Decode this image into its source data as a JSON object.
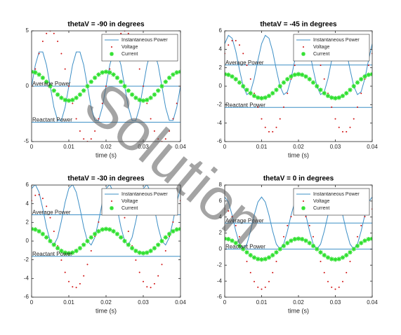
{
  "chart_data": [
    {
      "type": "line",
      "title": "thetaV = -90 in degrees",
      "xlabel": "time (s)",
      "x": [
        0,
        0.001,
        0.002,
        0.003,
        0.004,
        0.005,
        0.006,
        0.007,
        0.008,
        0.009,
        0.01,
        0.011,
        0.012,
        0.013,
        0.014,
        0.015,
        0.016,
        0.017,
        0.018,
        0.019,
        0.02,
        0.021,
        0.022,
        0.023,
        0.024,
        0.025,
        0.026,
        0.027,
        0.028,
        0.029,
        0.03,
        0.031,
        0.032,
        0.033,
        0.034,
        0.035,
        0.036,
        0.037,
        0.038,
        0.039,
        0.04
      ],
      "xlim": [
        0,
        0.04
      ],
      "xticks": [
        0,
        0.01,
        0.02,
        0.03,
        0.04
      ],
      "ylim": [
        -5,
        5
      ],
      "yticks": [
        -5,
        0,
        5
      ],
      "legend": "top-right",
      "series": [
        {
          "name": "Instantaneous Power",
          "color": "#3d8fc6",
          "style": "line",
          "values": [
            0,
            1.91,
            3.09,
            3.09,
            1.91,
            0,
            -1.91,
            -3.09,
            -3.09,
            -1.91,
            0,
            1.91,
            3.09,
            3.09,
            1.91,
            0,
            -1.91,
            -3.09,
            -3.09,
            -1.91,
            0,
            1.91,
            3.09,
            3.09,
            1.91,
            0,
            -1.91,
            -3.09,
            -3.09,
            -1.91,
            0,
            1.91,
            3.09,
            3.09,
            1.91,
            0,
            -1.91,
            -3.09,
            -3.09,
            -1.91,
            0
          ]
        },
        {
          "name": "Voltage",
          "color": "#d01010",
          "style": "dots",
          "values": [
            0,
            1.55,
            2.94,
            4.05,
            4.76,
            5,
            4.76,
            4.05,
            2.94,
            1.55,
            0,
            -1.55,
            -2.94,
            -4.05,
            -4.76,
            -5,
            -4.76,
            -4.05,
            -2.94,
            -1.55,
            0,
            1.55,
            2.94,
            4.05,
            4.76,
            5,
            4.76,
            4.05,
            2.94,
            1.55,
            0,
            -1.55,
            -2.94,
            -4.05,
            -4.76,
            -5,
            -4.76,
            -4.05,
            -2.94,
            -1.55,
            0
          ]
        },
        {
          "name": "Current",
          "color": "#2ee02e",
          "style": "stars",
          "values": [
            1.3,
            1.24,
            1.05,
            0.76,
            0.4,
            0,
            -0.4,
            -0.76,
            -1.05,
            -1.24,
            -1.3,
            -1.24,
            -1.05,
            -0.76,
            -0.4,
            0,
            0.4,
            0.76,
            1.05,
            1.24,
            1.3,
            1.24,
            1.05,
            0.76,
            0.4,
            0,
            -0.4,
            -0.76,
            -1.05,
            -1.24,
            -1.3,
            -1.24,
            -1.05,
            -0.76,
            -0.4,
            0,
            0.4,
            0.76,
            1.05,
            1.24,
            1.3
          ]
        }
      ],
      "hlines": [
        {
          "label": "Average Power",
          "value": 0,
          "color": "#3d8fc6"
        },
        {
          "label": "Reactant Power",
          "value": -3.25,
          "color": "#3d8fc6"
        }
      ]
    },
    {
      "type": "line",
      "title": "thetaV = -45 in degrees",
      "xlabel": "time (s)",
      "x": [
        0,
        0.001,
        0.002,
        0.003,
        0.004,
        0.005,
        0.006,
        0.007,
        0.008,
        0.009,
        0.01,
        0.011,
        0.012,
        0.013,
        0.014,
        0.015,
        0.016,
        0.017,
        0.018,
        0.019,
        0.02,
        0.021,
        0.022,
        0.023,
        0.024,
        0.025,
        0.026,
        0.027,
        0.028,
        0.029,
        0.03,
        0.031,
        0.032,
        0.033,
        0.034,
        0.035,
        0.036,
        0.037,
        0.038,
        0.039,
        0.04
      ],
      "xlim": [
        0,
        0.04
      ],
      "xticks": [
        0,
        0.01,
        0.02,
        0.03,
        0.04
      ],
      "ylim": [
        -6,
        6
      ],
      "yticks": [
        -6,
        -4,
        -2,
        0,
        2,
        4,
        6
      ],
      "legend": "top-right",
      "series": [
        {
          "name": "Instantaneous Power",
          "color": "#3d8fc6",
          "style": "line",
          "values": [
            4.6,
            5.51,
            5.2,
            3.78,
            1.79,
            0,
            -0.91,
            -0.6,
            0.82,
            2.81,
            4.6,
            5.51,
            5.2,
            3.78,
            1.79,
            0,
            -0.91,
            -0.6,
            0.82,
            2.81,
            4.6,
            5.51,
            5.2,
            3.78,
            1.79,
            0,
            -0.91,
            -0.6,
            0.82,
            2.81,
            4.6,
            5.51,
            5.2,
            3.78,
            1.79,
            0,
            -0.91,
            -0.6,
            0.82,
            2.81,
            4.6
          ]
        },
        {
          "name": "Voltage",
          "color": "#d01010",
          "style": "dots",
          "values": [
            3.54,
            4.46,
            4.94,
            4.94,
            4.46,
            3.54,
            2.27,
            0.78,
            -0.78,
            -2.27,
            -3.54,
            -4.46,
            -4.94,
            -4.94,
            -4.46,
            -3.54,
            -2.27,
            -0.78,
            0.78,
            2.27,
            3.54,
            4.46,
            4.94,
            4.94,
            4.46,
            3.54,
            2.27,
            0.78,
            -0.78,
            -2.27,
            -3.54,
            -4.46,
            -4.94,
            -4.94,
            -4.46,
            -3.54,
            -2.27,
            -0.78,
            0.78,
            2.27,
            3.54
          ]
        },
        {
          "name": "Current",
          "color": "#2ee02e",
          "style": "stars",
          "values": [
            1.3,
            1.24,
            1.05,
            0.76,
            0.4,
            0,
            -0.4,
            -0.76,
            -1.05,
            -1.24,
            -1.3,
            -1.24,
            -1.05,
            -0.76,
            -0.4,
            0,
            0.4,
            0.76,
            1.05,
            1.24,
            1.3,
            1.24,
            1.05,
            0.76,
            0.4,
            0,
            -0.4,
            -0.76,
            -1.05,
            -1.24,
            -1.3,
            -1.24,
            -1.05,
            -0.76,
            -0.4,
            0,
            0.4,
            0.76,
            1.05,
            1.24,
            1.3
          ]
        }
      ],
      "hlines": [
        {
          "label": "Average Power",
          "value": 2.3,
          "color": "#3d8fc6"
        },
        {
          "label": "Reactant Power",
          "value": -2.3,
          "color": "#3d8fc6"
        }
      ]
    },
    {
      "type": "line",
      "title": "thetaV = -30 in degrees",
      "xlabel": "time (s)",
      "x": [
        0,
        0.001,
        0.002,
        0.003,
        0.004,
        0.005,
        0.006,
        0.007,
        0.008,
        0.009,
        0.01,
        0.011,
        0.012,
        0.013,
        0.014,
        0.015,
        0.016,
        0.017,
        0.018,
        0.019,
        0.02,
        0.021,
        0.022,
        0.023,
        0.024,
        0.025,
        0.026,
        0.027,
        0.028,
        0.029,
        0.03,
        0.031,
        0.032,
        0.033,
        0.034,
        0.035,
        0.036,
        0.037,
        0.038,
        0.039,
        0.04
      ],
      "xlim": [
        0,
        0.04
      ],
      "xticks": [
        0,
        0.01,
        0.02,
        0.03,
        0.04
      ],
      "ylim": [
        -6,
        6
      ],
      "yticks": [
        -6,
        -4,
        -2,
        0,
        2,
        4,
        6
      ],
      "legend": "top-right",
      "series": [
        {
          "name": "Instantaneous Power",
          "color": "#3d8fc6",
          "style": "line",
          "values": [
            5.63,
            6.05,
            5.23,
            3.49,
            1.49,
            0,
            -0.42,
            0.4,
            2.13,
            4.14,
            5.63,
            6.05,
            5.23,
            3.49,
            1.49,
            0,
            -0.42,
            0.4,
            2.13,
            4.14,
            5.63,
            6.05,
            5.23,
            3.49,
            1.49,
            0,
            -0.42,
            0.4,
            2.13,
            4.14,
            5.63,
            6.05,
            5.23,
            3.49,
            1.49,
            0,
            -0.42,
            0.4,
            2.13,
            4.14,
            5.63
          ]
        },
        {
          "name": "Voltage",
          "color": "#d01010",
          "style": "dots",
          "values": [
            4.33,
            4.89,
            4.97,
            4.57,
            3.72,
            2.5,
            1.04,
            -0.52,
            -2.03,
            -3.35,
            -4.33,
            -4.89,
            -4.97,
            -4.57,
            -3.72,
            -2.5,
            -1.04,
            0.52,
            2.03,
            3.35,
            4.33,
            4.89,
            4.97,
            4.57,
            3.72,
            2.5,
            1.04,
            -0.52,
            -2.03,
            -3.35,
            -4.33,
            -4.89,
            -4.97,
            -4.57,
            -3.72,
            -2.5,
            -1.04,
            0.52,
            2.03,
            3.35,
            4.33
          ]
        },
        {
          "name": "Current",
          "color": "#2ee02e",
          "style": "stars",
          "values": [
            1.3,
            1.24,
            1.05,
            0.76,
            0.4,
            0,
            -0.4,
            -0.76,
            -1.05,
            -1.24,
            -1.3,
            -1.24,
            -1.05,
            -0.76,
            -0.4,
            0,
            0.4,
            0.76,
            1.05,
            1.24,
            1.3,
            1.24,
            1.05,
            0.76,
            0.4,
            0,
            -0.4,
            -0.76,
            -1.05,
            -1.24,
            -1.3,
            -1.24,
            -1.05,
            -0.76,
            -0.4,
            0,
            0.4,
            0.76,
            1.05,
            1.24,
            1.3
          ]
        }
      ],
      "hlines": [
        {
          "label": "Average Power",
          "value": 2.81,
          "color": "#3d8fc6"
        },
        {
          "label": "Reactant Power",
          "value": -1.63,
          "color": "#3d8fc6"
        }
      ]
    },
    {
      "type": "line",
      "title": "thetaV = 0 in degrees",
      "xlabel": "time (s)",
      "x": [
        0,
        0.001,
        0.002,
        0.003,
        0.004,
        0.005,
        0.006,
        0.007,
        0.008,
        0.009,
        0.01,
        0.011,
        0.012,
        0.013,
        0.014,
        0.015,
        0.016,
        0.017,
        0.018,
        0.019,
        0.02,
        0.021,
        0.022,
        0.023,
        0.024,
        0.025,
        0.026,
        0.027,
        0.028,
        0.029,
        0.03,
        0.031,
        0.032,
        0.033,
        0.034,
        0.035,
        0.036,
        0.037,
        0.038,
        0.039,
        0.04
      ],
      "xlim": [
        0,
        0.04
      ],
      "xticks": [
        0,
        0.01,
        0.02,
        0.03,
        0.04
      ],
      "ylim": [
        -6,
        8
      ],
      "yticks": [
        -6,
        -4,
        -2,
        0,
        2,
        4,
        6,
        8
      ],
      "legend": "top-right",
      "series": [
        {
          "name": "Instantaneous Power",
          "color": "#3d8fc6",
          "style": "line",
          "values": [
            6.5,
            5.88,
            4.25,
            2.25,
            0.62,
            0,
            0.62,
            2.25,
            4.25,
            5.88,
            6.5,
            5.88,
            4.25,
            2.25,
            0.62,
            0,
            0.62,
            2.25,
            4.25,
            5.88,
            6.5,
            5.88,
            4.25,
            2.25,
            0.62,
            0,
            0.62,
            2.25,
            4.25,
            5.88,
            6.5,
            5.88,
            4.25,
            2.25,
            0.62,
            0,
            0.62,
            2.25,
            4.25,
            5.88,
            6.5
          ]
        },
        {
          "name": "Voltage",
          "color": "#d01010",
          "style": "dots",
          "values": [
            5,
            4.76,
            4.05,
            2.94,
            1.55,
            0,
            -1.55,
            -2.94,
            -4.05,
            -4.76,
            -5,
            -4.76,
            -4.05,
            -2.94,
            -1.55,
            0,
            1.55,
            2.94,
            4.05,
            4.76,
            5,
            4.76,
            4.05,
            2.94,
            1.55,
            0,
            -1.55,
            -2.94,
            -4.05,
            -4.76,
            -5,
            -4.76,
            -4.05,
            -2.94,
            -1.55,
            0,
            1.55,
            2.94,
            4.05,
            4.76,
            5
          ]
        },
        {
          "name": "Current",
          "color": "#2ee02e",
          "style": "stars",
          "values": [
            1.3,
            1.24,
            1.05,
            0.76,
            0.4,
            0,
            -0.4,
            -0.76,
            -1.05,
            -1.24,
            -1.3,
            -1.24,
            -1.05,
            -0.76,
            -0.4,
            0,
            0.4,
            0.76,
            1.05,
            1.24,
            1.3,
            1.24,
            1.05,
            0.76,
            0.4,
            0,
            -0.4,
            -0.76,
            -1.05,
            -1.24,
            -1.3,
            -1.24,
            -1.05,
            -0.76,
            -0.4,
            0,
            0.4,
            0.76,
            1.05,
            1.24,
            1.3
          ]
        }
      ],
      "hlines": [
        {
          "label": "Average Power",
          "value": 3.25,
          "color": "#3d8fc6"
        },
        {
          "label": "Reactant Power",
          "value": 0,
          "color": "#3d8fc6"
        }
      ]
    }
  ],
  "watermark": "Solution"
}
